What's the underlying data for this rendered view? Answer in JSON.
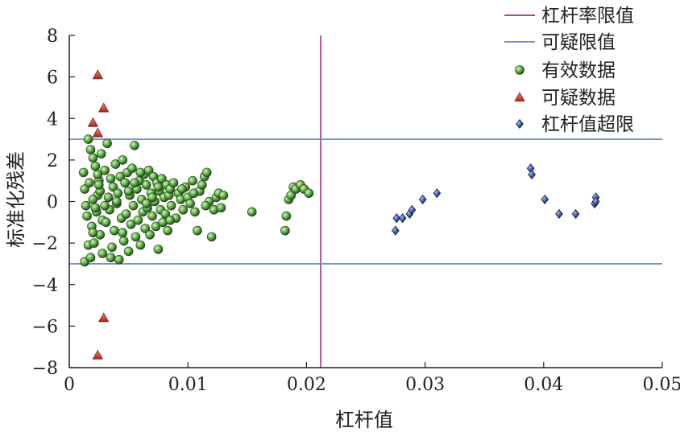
{
  "chart_data": {
    "type": "scatter",
    "xlabel": "杠杆值",
    "ylabel": "标准化残差",
    "xlim": [
      0,
      0.05
    ],
    "ylim": [
      -8,
      8
    ],
    "xticks": [
      "0",
      "0.01",
      "0.02",
      "0.03",
      "0.04",
      "0.05"
    ],
    "yticks": [
      "8",
      "6",
      "4",
      "2",
      "0",
      "−2",
      "−4",
      "−6",
      "−8"
    ],
    "xtick_values": [
      0,
      0.01,
      0.02,
      0.03,
      0.04,
      0.05
    ],
    "ytick_values": [
      8,
      6,
      4,
      2,
      0,
      -2,
      -4,
      -6,
      -8
    ],
    "legend_position": "top-right",
    "reference_lines": [
      {
        "name": "杠杆率限值",
        "orientation": "vertical",
        "value": 0.0212,
        "color": "#a0307f"
      },
      {
        "name": "可疑限值",
        "orientation": "horizontal",
        "values": [
          3,
          -3
        ],
        "color": "#5b86c0"
      }
    ],
    "series": [
      {
        "name": "有效数据",
        "marker": "circle",
        "color": "#4e9a3c",
        "points": [
          [
            0.0013,
            -2.9
          ],
          [
            0.0016,
            3.0
          ],
          [
            0.0016,
            -2.1
          ],
          [
            0.0018,
            2.5
          ],
          [
            0.0018,
            -2.7
          ],
          [
            0.0012,
            1.4
          ],
          [
            0.0013,
            0.6
          ],
          [
            0.0014,
            -0.2
          ],
          [
            0.0015,
            -0.7
          ],
          [
            0.0017,
            0.9
          ],
          [
            0.0019,
            -1.2
          ],
          [
            0.002,
            2.1
          ],
          [
            0.0021,
            -2.0
          ],
          [
            0.0022,
            1.7
          ],
          [
            0.0023,
            -0.5
          ],
          [
            0.0024,
            0.3
          ],
          [
            0.0025,
            1.0
          ],
          [
            0.0026,
            -1.6
          ],
          [
            0.0027,
            2.3
          ],
          [
            0.0028,
            -0.9
          ],
          [
            0.002,
            0.1
          ],
          [
            0.0022,
            -0.3
          ],
          [
            0.0024,
            1.3
          ],
          [
            0.0026,
            0.5
          ],
          [
            0.0028,
            -2.5
          ],
          [
            0.003,
            1.5
          ],
          [
            0.0031,
            -1.0
          ],
          [
            0.0032,
            2.8
          ],
          [
            0.0033,
            0.2
          ],
          [
            0.0034,
            -0.4
          ],
          [
            0.0035,
            1.1
          ],
          [
            0.0036,
            -2.2
          ],
          [
            0.0037,
            0.7
          ],
          [
            0.0038,
            -1.4
          ],
          [
            0.0039,
            1.8
          ],
          [
            0.004,
            -0.1
          ],
          [
            0.0041,
            0.4
          ],
          [
            0.0042,
            -2.8
          ],
          [
            0.0043,
            1.2
          ],
          [
            0.0044,
            -0.8
          ],
          [
            0.0045,
            2.0
          ],
          [
            0.0046,
            -1.9
          ],
          [
            0.0047,
            0.9
          ],
          [
            0.0048,
            -0.6
          ],
          [
            0.0049,
            1.4
          ],
          [
            0.005,
            -2.4
          ],
          [
            0.0051,
            0.3
          ],
          [
            0.0052,
            -1.1
          ],
          [
            0.0053,
            1.6
          ],
          [
            0.0054,
            -0.2
          ],
          [
            0.0055,
            2.7
          ],
          [
            0.0056,
            -1.7
          ],
          [
            0.0057,
            0.6
          ],
          [
            0.0058,
            -0.9
          ],
          [
            0.0059,
            1.0
          ],
          [
            0.006,
            -2.1
          ],
          [
            0.0061,
            0.1
          ],
          [
            0.0062,
            -0.5
          ],
          [
            0.0063,
            1.3
          ],
          [
            0.0064,
            -1.3
          ],
          [
            0.0065,
            0.8
          ],
          [
            0.0066,
            -0.3
          ],
          [
            0.0067,
            1.5
          ],
          [
            0.0068,
            -1.6
          ],
          [
            0.0069,
            0.4
          ],
          [
            0.007,
            -0.7
          ],
          [
            0.0071,
            1.2
          ],
          [
            0.0072,
            0.0
          ],
          [
            0.0073,
            -1.2
          ],
          [
            0.0074,
            0.9
          ],
          [
            0.0075,
            -2.3
          ],
          [
            0.0076,
            0.5
          ],
          [
            0.0077,
            -0.4
          ],
          [
            0.0078,
            1.1
          ],
          [
            0.0079,
            -1.0
          ],
          [
            0.008,
            0.2
          ],
          [
            0.0081,
            -0.6
          ],
          [
            0.0082,
            0.8
          ],
          [
            0.0083,
            -1.4
          ],
          [
            0.0084,
            0.3
          ],
          [
            0.0085,
            0.6
          ],
          [
            0.0086,
            -0.2
          ],
          [
            0.0088,
            0.9
          ],
          [
            0.009,
            -0.8
          ],
          [
            0.0092,
            0.4
          ],
          [
            0.0094,
            0.1
          ],
          [
            0.0096,
            -0.4
          ],
          [
            0.0098,
            0.7
          ],
          [
            0.01,
            0.2
          ],
          [
            0.0102,
            -0.1
          ],
          [
            0.0104,
            1.0
          ],
          [
            0.0106,
            -0.5
          ],
          [
            0.0108,
            -1.4
          ],
          [
            0.011,
            0.5
          ],
          [
            0.0112,
            0.8
          ],
          [
            0.0114,
            1.2
          ],
          [
            0.0116,
            1.4
          ],
          [
            0.0118,
            0.0
          ],
          [
            0.012,
            -1.7
          ],
          [
            0.0122,
            -0.4
          ],
          [
            0.0124,
            0.2
          ],
          [
            0.0126,
            0.4
          ],
          [
            0.0128,
            -0.3
          ],
          [
            0.013,
            0.3
          ],
          [
            0.002,
            -1.5
          ],
          [
            0.003,
            -0.2
          ],
          [
            0.004,
            0.0
          ],
          [
            0.005,
            0.5
          ],
          [
            0.006,
            1.4
          ],
          [
            0.007,
            0.2
          ],
          [
            0.0035,
            -2.7
          ],
          [
            0.0045,
            -1.5
          ],
          [
            0.0055,
            0.9
          ],
          [
            0.0065,
            -0.1
          ],
          [
            0.0075,
            0.7
          ],
          [
            0.0085,
            -0.9
          ],
          [
            0.0095,
            0.6
          ],
          [
            0.0105,
            0.4
          ],
          [
            0.0115,
            -0.2
          ],
          [
            0.0025,
            0.8
          ],
          [
            0.0154,
            -0.5
          ],
          [
            0.0182,
            -1.4
          ],
          [
            0.0183,
            -0.7
          ],
          [
            0.0185,
            0.1
          ],
          [
            0.0187,
            0.3
          ],
          [
            0.0189,
            0.7
          ],
          [
            0.0191,
            0.6
          ],
          [
            0.0195,
            0.8
          ],
          [
            0.0198,
            0.6
          ],
          [
            0.0202,
            0.4
          ]
        ]
      },
      {
        "name": "可疑数据",
        "marker": "triangle",
        "color": "#c0392b",
        "points": [
          [
            0.0024,
            6.1
          ],
          [
            0.0029,
            4.5
          ],
          [
            0.002,
            3.8
          ],
          [
            0.0024,
            3.3
          ],
          [
            0.0029,
            -5.6
          ],
          [
            0.0024,
            -7.4
          ]
        ]
      },
      {
        "name": "杠杆值超限",
        "marker": "diamond",
        "color": "#2b3f8f",
        "points": [
          [
            0.0275,
            -1.4
          ],
          [
            0.0276,
            -0.8
          ],
          [
            0.0281,
            -0.8
          ],
          [
            0.0287,
            -0.6
          ],
          [
            0.0289,
            -0.4
          ],
          [
            0.0298,
            0.1
          ],
          [
            0.031,
            0.4
          ],
          [
            0.0389,
            1.6
          ],
          [
            0.039,
            1.3
          ],
          [
            0.0401,
            0.1
          ],
          [
            0.0413,
            -0.6
          ],
          [
            0.0427,
            -0.6
          ],
          [
            0.0443,
            -0.1
          ],
          [
            0.0444,
            0.2
          ],
          [
            0.0444,
            0.0
          ]
        ]
      }
    ]
  }
}
